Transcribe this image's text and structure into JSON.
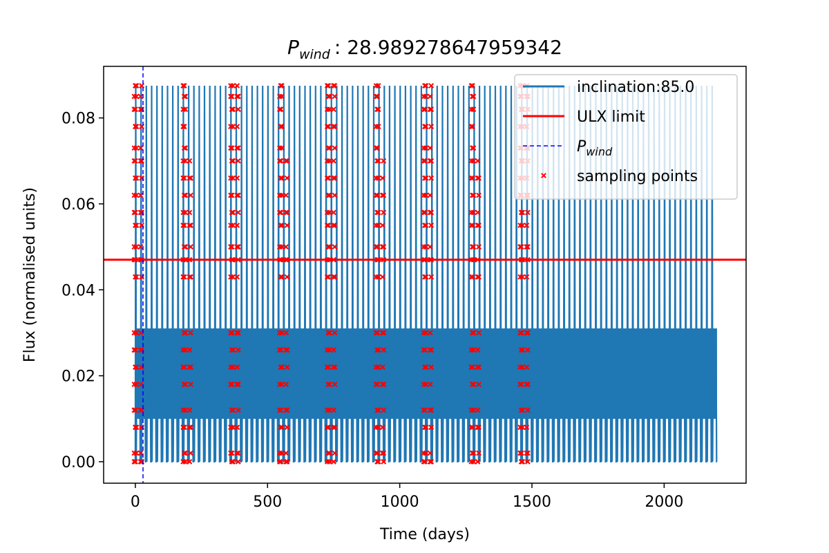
{
  "chart_data": {
    "type": "line",
    "title": "P_wind : 28.989278647959342",
    "title_symbol": "P",
    "title_subscript": "wind",
    "title_value": ": 28.989278647959342",
    "xlabel": "Time (days)",
    "ylabel": "Flux (normalised units)",
    "xlim": [
      -120,
      2310
    ],
    "ylim": [
      -0.005,
      0.092
    ],
    "xticks": [
      0,
      500,
      1000,
      1500,
      2000
    ],
    "xtick_labels": [
      "0",
      "500",
      "1000",
      "1500",
      "2000"
    ],
    "yticks": [
      0.0,
      0.02,
      0.04,
      0.06,
      0.08
    ],
    "ytick_labels": [
      "0.00",
      "0.02",
      "0.04",
      "0.06",
      "0.08"
    ],
    "grid": false,
    "legend_position": "top-right",
    "series": [
      {
        "name": "inclination:85.0",
        "kind": "line",
        "color": "#1f77b4",
        "x_start": 0,
        "x_end": 2200,
        "period_days": 20,
        "peak_flux": 0.0875,
        "low_band_flux": [
          0.01,
          0.031
        ]
      },
      {
        "name": "ULX limit",
        "kind": "hline",
        "color": "#ff0000",
        "y": 0.047
      },
      {
        "name": "P_wind",
        "name_symbol": "P",
        "name_subscript": "wind",
        "kind": "vline",
        "color": "#0000ff",
        "style": "dashed",
        "x": 28.989278647959342
      },
      {
        "name": "sampling points",
        "kind": "scatter",
        "marker": "x",
        "color": "#ff0000",
        "clusters_x": [
          0,
          185,
          365,
          550,
          730,
          915,
          1095,
          1275,
          1460
        ]
      }
    ]
  }
}
